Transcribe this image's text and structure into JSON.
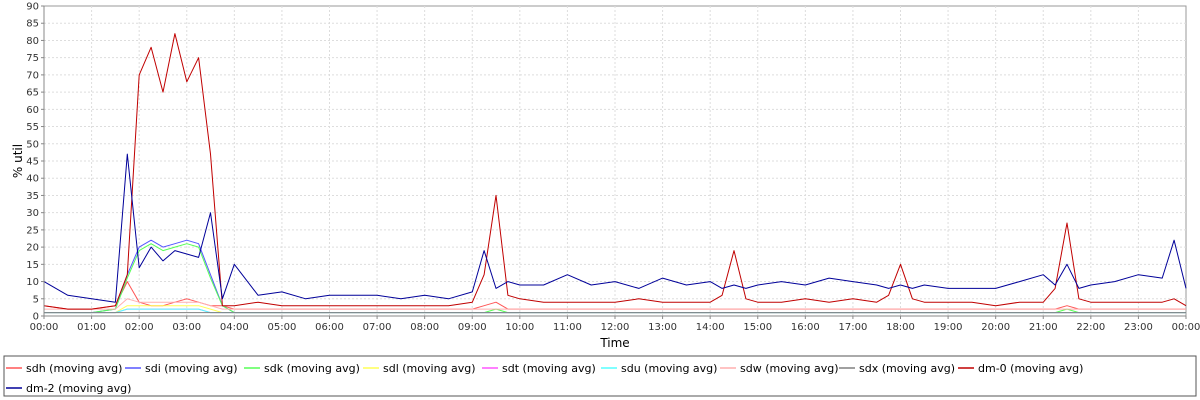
{
  "chart_data": {
    "type": "line",
    "title": "",
    "xlabel": "Time",
    "ylabel": "% util",
    "ylim": [
      0,
      90
    ],
    "yticks": [
      0,
      5,
      10,
      15,
      20,
      25,
      30,
      35,
      40,
      45,
      50,
      55,
      60,
      65,
      70,
      75,
      80,
      85,
      90
    ],
    "xticks": [
      "00:00",
      "01:00",
      "02:00",
      "03:00",
      "04:00",
      "05:00",
      "06:00",
      "07:00",
      "08:00",
      "09:00",
      "10:00",
      "11:00",
      "12:00",
      "13:00",
      "14:00",
      "15:00",
      "16:00",
      "17:00",
      "18:00",
      "19:00",
      "20:00",
      "21:00",
      "22:00",
      "23:00",
      "00:00"
    ],
    "grid": true,
    "legend_position": "bottom",
    "x_hours": [
      0,
      0.5,
      1.0,
      1.5,
      1.75,
      2.0,
      2.25,
      2.5,
      2.75,
      3.0,
      3.25,
      3.5,
      3.75,
      4.0,
      4.5,
      5.0,
      5.5,
      6.0,
      6.5,
      7.0,
      7.5,
      8.0,
      8.5,
      9.0,
      9.25,
      9.5,
      9.75,
      10.0,
      10.5,
      11.0,
      11.5,
      12.0,
      12.5,
      13.0,
      13.5,
      14.0,
      14.25,
      14.5,
      14.75,
      15.0,
      15.5,
      16.0,
      16.5,
      17.0,
      17.5,
      17.75,
      18.0,
      18.25,
      18.5,
      19.0,
      19.5,
      20.0,
      20.5,
      21.0,
      21.25,
      21.5,
      21.75,
      22.0,
      22.5,
      23.0,
      23.5,
      23.75,
      24.0
    ],
    "series": [
      {
        "name": "sdh (moving avg)",
        "color": "#ff5555",
        "values": [
          3,
          2,
          2,
          3,
          10,
          4,
          3,
          3,
          4,
          5,
          4,
          3,
          3,
          2,
          2,
          2,
          2,
          2,
          2,
          2,
          2,
          2,
          2,
          2,
          3,
          4,
          2,
          2,
          2,
          2,
          2,
          2,
          2,
          2,
          2,
          2,
          2,
          2,
          2,
          2,
          2,
          2,
          2,
          2,
          2,
          2,
          2,
          2,
          2,
          2,
          2,
          2,
          2,
          2,
          2,
          3,
          2,
          2,
          2,
          2,
          2,
          2,
          2
        ]
      },
      {
        "name": "sdi (moving avg)",
        "color": "#5555ff",
        "values": [
          1,
          1,
          1,
          2,
          12,
          20,
          22,
          20,
          21,
          22,
          21,
          12,
          3,
          1,
          1,
          1,
          1,
          1,
          1,
          1,
          1,
          1,
          1,
          1,
          1,
          1,
          1,
          1,
          1,
          1,
          1,
          1,
          1,
          1,
          1,
          1,
          1,
          1,
          1,
          1,
          1,
          1,
          1,
          1,
          1,
          1,
          1,
          1,
          1,
          1,
          1,
          1,
          1,
          1,
          1,
          1,
          1,
          1,
          1,
          1,
          1,
          1,
          1
        ]
      },
      {
        "name": "sdk (moving avg)",
        "color": "#55ff55",
        "values": [
          1,
          1,
          1,
          2,
          11,
          19,
          21,
          19,
          20,
          21,
          20,
          11,
          3,
          1,
          1,
          1,
          1,
          1,
          1,
          1,
          1,
          1,
          1,
          1,
          1,
          2,
          1,
          1,
          1,
          1,
          1,
          1,
          1,
          1,
          1,
          1,
          1,
          1,
          1,
          1,
          1,
          1,
          1,
          1,
          1,
          1,
          1,
          1,
          1,
          1,
          1,
          1,
          1,
          1,
          1,
          2,
          1,
          1,
          1,
          1,
          1,
          1,
          1
        ]
      },
      {
        "name": "sdl (moving avg)",
        "color": "#ffff55",
        "values": [
          1,
          1,
          1,
          1,
          3,
          3,
          3,
          3,
          3,
          3,
          3,
          2,
          1,
          1,
          1,
          1,
          1,
          1,
          1,
          1,
          1,
          1,
          1,
          1,
          1,
          1,
          1,
          1,
          1,
          1,
          1,
          1,
          1,
          1,
          1,
          1,
          1,
          1,
          1,
          1,
          1,
          1,
          1,
          1,
          1,
          1,
          1,
          1,
          1,
          1,
          1,
          1,
          1,
          1,
          1,
          1,
          1,
          1,
          1,
          1,
          1,
          1,
          1
        ]
      },
      {
        "name": "sdt (moving avg)",
        "color": "#ff55ff",
        "values": [
          1,
          1,
          1,
          1,
          2,
          2,
          2,
          2,
          2,
          2,
          2,
          1,
          1,
          1,
          1,
          1,
          1,
          1,
          1,
          1,
          1,
          1,
          1,
          1,
          1,
          1,
          1,
          1,
          1,
          1,
          1,
          1,
          1,
          1,
          1,
          1,
          1,
          1,
          1,
          1,
          1,
          1,
          1,
          1,
          1,
          1,
          1,
          1,
          1,
          1,
          1,
          1,
          1,
          1,
          1,
          1,
          1,
          1,
          1,
          1,
          1,
          1,
          1
        ]
      },
      {
        "name": "sdu (moving avg)",
        "color": "#55ffff",
        "values": [
          1,
          1,
          1,
          1,
          2,
          2,
          2,
          2,
          2,
          2,
          2,
          1,
          1,
          1,
          1,
          1,
          1,
          1,
          1,
          1,
          1,
          1,
          1,
          1,
          1,
          1,
          1,
          1,
          1,
          1,
          1,
          1,
          1,
          1,
          1,
          1,
          1,
          1,
          1,
          1,
          1,
          1,
          1,
          1,
          1,
          1,
          1,
          1,
          1,
          1,
          1,
          1,
          1,
          1,
          1,
          1,
          1,
          1,
          1,
          1,
          1,
          1,
          1
        ]
      },
      {
        "name": "sdw (moving avg)",
        "color": "#ffafaf",
        "values": [
          2,
          2,
          2,
          2,
          5,
          4,
          4,
          4,
          4,
          4,
          4,
          3,
          2,
          2,
          2,
          2,
          2,
          2,
          2,
          2,
          2,
          2,
          2,
          2,
          2,
          2,
          2,
          2,
          2,
          2,
          2,
          2,
          2,
          2,
          2,
          2,
          2,
          2,
          2,
          2,
          2,
          2,
          2,
          2,
          2,
          2,
          2,
          2,
          2,
          2,
          2,
          2,
          2,
          2,
          2,
          2,
          2,
          2,
          2,
          2,
          2,
          2,
          2
        ]
      },
      {
        "name": "sdx (moving avg)",
        "color": "#808080",
        "values": [
          1,
          1,
          1,
          1,
          1,
          1,
          1,
          1,
          1,
          1,
          1,
          1,
          1,
          1,
          1,
          1,
          1,
          1,
          1,
          1,
          1,
          1,
          1,
          1,
          1,
          1,
          1,
          1,
          1,
          1,
          1,
          1,
          1,
          1,
          1,
          1,
          1,
          1,
          1,
          1,
          1,
          1,
          1,
          1,
          1,
          1,
          1,
          1,
          1,
          1,
          1,
          1,
          1,
          1,
          1,
          1,
          1,
          1,
          1,
          1,
          1,
          1,
          1
        ]
      },
      {
        "name": "dm-0 (moving avg)",
        "color": "#c00000",
        "values": [
          3,
          2,
          2,
          3,
          12,
          70,
          78,
          65,
          82,
          68,
          75,
          47,
          3,
          3,
          4,
          3,
          3,
          3,
          3,
          3,
          3,
          3,
          3,
          4,
          12,
          35,
          6,
          5,
          4,
          4,
          4,
          4,
          5,
          4,
          4,
          4,
          6,
          19,
          5,
          4,
          4,
          5,
          4,
          5,
          4,
          6,
          15,
          5,
          4,
          4,
          4,
          3,
          4,
          4,
          8,
          27,
          5,
          4,
          4,
          4,
          4,
          5,
          3
        ]
      },
      {
        "name": "dm-2 (moving avg)",
        "color": "#000099",
        "values": [
          10,
          6,
          5,
          4,
          47,
          14,
          20,
          16,
          19,
          18,
          17,
          30,
          5,
          15,
          6,
          7,
          5,
          6,
          6,
          6,
          5,
          6,
          5,
          7,
          19,
          8,
          10,
          9,
          9,
          12,
          9,
          10,
          8,
          11,
          9,
          10,
          8,
          9,
          8,
          9,
          10,
          9,
          11,
          10,
          9,
          8,
          9,
          8,
          9,
          8,
          8,
          8,
          10,
          12,
          9,
          15,
          8,
          9,
          10,
          12,
          11,
          22,
          8
        ]
      }
    ]
  }
}
